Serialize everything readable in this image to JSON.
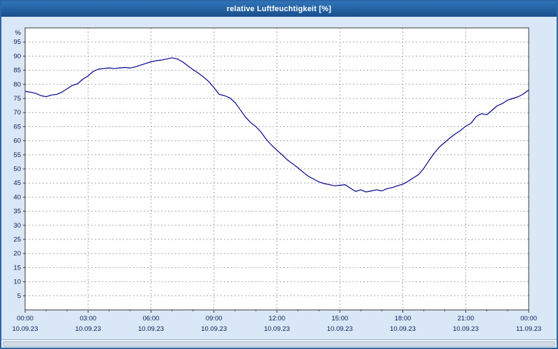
{
  "window": {
    "title": "relative Luftfeuchtigkeit [%]"
  },
  "chart_data": {
    "type": "line",
    "title": "relative Luftfeuchtigkeit [%]",
    "ylabel": "%",
    "xlabel": "",
    "ylim": [
      0,
      100
    ],
    "ytick_step": 5,
    "yticks": [
      5,
      10,
      15,
      20,
      25,
      30,
      35,
      40,
      45,
      50,
      55,
      60,
      65,
      70,
      75,
      80,
      85,
      90,
      95
    ],
    "xlim_hours": [
      0,
      24
    ],
    "xtick_step_hours": 3,
    "xticks": [
      {
        "time": "00:00",
        "date": "10.09.23"
      },
      {
        "time": "03:00",
        "date": "10.09.23"
      },
      {
        "time": "06:00",
        "date": "10.09.23"
      },
      {
        "time": "09:00",
        "date": "10.09.23"
      },
      {
        "time": "12:00",
        "date": "10.09.23"
      },
      {
        "time": "15:00",
        "date": "10.09.23"
      },
      {
        "time": "18:00",
        "date": "10.09.23"
      },
      {
        "time": "21:00",
        "date": "10.09.23"
      },
      {
        "time": "00:00",
        "date": "11.09.23"
      }
    ],
    "grid": true,
    "grid_color": "#a0a6ad",
    "frame_color": "#3a3a3a",
    "label_color": "#0a1f5a",
    "series": [
      {
        "name": "relative Luftfeuchtigkeit",
        "color": "#00008b",
        "x_start_hours": 0,
        "x_step_hours": 0.25,
        "values": [
          77.5,
          77.2,
          76.8,
          76.0,
          75.6,
          76.2,
          76.4,
          77.2,
          78.4,
          79.6,
          80.2,
          81.8,
          83.0,
          84.6,
          85.4,
          85.6,
          85.8,
          85.6,
          85.8,
          86.0,
          85.8,
          86.2,
          86.8,
          87.4,
          88.0,
          88.4,
          88.6,
          89.0,
          89.4,
          89.0,
          88.0,
          86.6,
          85.2,
          84.0,
          82.6,
          81.0,
          78.8,
          76.4,
          76.0,
          75.2,
          73.6,
          71.0,
          68.4,
          66.4,
          65.0,
          63.0,
          60.4,
          58.4,
          56.6,
          55.0,
          53.2,
          51.8,
          50.4,
          48.8,
          47.4,
          46.4,
          45.4,
          44.8,
          44.4,
          44.0,
          44.2,
          44.4,
          43.2,
          42.0,
          42.6,
          41.8,
          42.2,
          42.6,
          42.2,
          43.0,
          43.4,
          44.0,
          44.6,
          45.6,
          46.8,
          48.0,
          50.2,
          53.0,
          55.6,
          57.8,
          59.4,
          61.0,
          62.4,
          63.6,
          65.2,
          66.2,
          68.6,
          69.6,
          69.2,
          70.8,
          72.4,
          73.2,
          74.4,
          75.0,
          75.6,
          76.6,
          78.0
        ]
      }
    ]
  }
}
